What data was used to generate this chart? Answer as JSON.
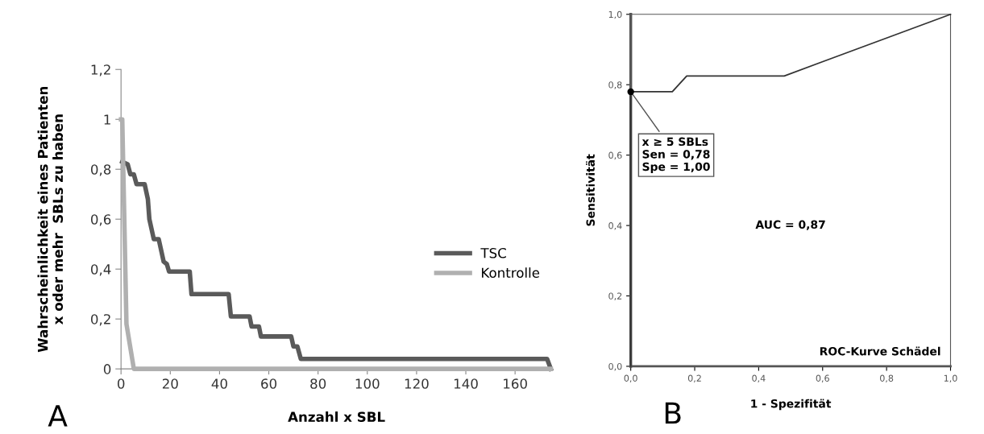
{
  "chart_data": [
    {
      "type": "line",
      "xlabel": "Anzahl x SBL",
      "ylabel": "Wahrscheinlichkeit eines Patienten\nx oder mehr  SBLs zu haben",
      "xlim": [
        0,
        175
      ],
      "xticks": [
        0,
        20,
        40,
        60,
        80,
        100,
        120,
        140,
        160
      ],
      "ylim": [
        0,
        1.2
      ],
      "yticks": [
        0,
        {
          "value": 0.2,
          "label": "0,2"
        },
        {
          "value": 0.4,
          "label": "0,4"
        },
        {
          "value": 0.6,
          "label": "0,6"
        },
        {
          "value": 0.8,
          "label": "0,8"
        },
        1,
        {
          "value": 1.2,
          "label": "1,2"
        }
      ],
      "grid": false,
      "legend": "right",
      "marker": "none",
      "line_style": "solid",
      "series": [
        {
          "name": "TSC",
          "color": "#5a5a5a",
          "x": [
            0.5,
            2.7,
            3.8,
            5.2,
            6.3,
            9.6,
            10.9,
            11.5,
            13.3,
            15.3,
            17.3,
            18.6,
            19.5,
            27.9,
            28.6,
            43.7,
            44.6,
            52.2,
            53.0,
            56.0,
            56.8,
            69.1,
            70.0,
            71.6,
            73.0,
            173,
            174.5
          ],
          "values": [
            0.83,
            0.82,
            0.78,
            0.78,
            0.74,
            0.74,
            0.68,
            0.6,
            0.52,
            0.52,
            0.43,
            0.42,
            0.39,
            0.39,
            0.3,
            0.3,
            0.21,
            0.21,
            0.17,
            0.17,
            0.13,
            0.13,
            0.09,
            0.09,
            0.04,
            0.04,
            0
          ]
        },
        {
          "name": "Kontrolle",
          "color": "#b0b0b0",
          "x": [
            0,
            0.5,
            2.2,
            5.2,
            174.5
          ],
          "values": [
            1,
            1,
            0.18,
            0,
            0
          ]
        }
      ],
      "annotations": [
        "A"
      ]
    },
    {
      "type": "line",
      "xlabel": "1 - Spezifität",
      "ylabel": "Sensitivität",
      "xlim": [
        0,
        1
      ],
      "xticks": [
        {
          "value": 0,
          "label": "0,0"
        },
        {
          "value": 0.2,
          "label": "0,2"
        },
        {
          "value": 0.4,
          "label": "0,4"
        },
        {
          "value": 0.6,
          "label": "0,6"
        },
        {
          "value": 0.8,
          "label": "0,8"
        },
        {
          "value": 1,
          "label": "1,0"
        }
      ],
      "ylim": [
        0,
        1
      ],
      "yticks": [
        {
          "value": 0,
          "label": "0,0"
        },
        {
          "value": 0.2,
          "label": "0,2"
        },
        {
          "value": 0.4,
          "label": "0,4"
        },
        {
          "value": 0.6,
          "label": "0,6"
        },
        {
          "value": 0.8,
          "label": "0,8"
        },
        {
          "value": 1,
          "label": "1,0"
        }
      ],
      "grid": false,
      "marker": "none",
      "line_style": "solid",
      "series": [
        {
          "color": "#333333",
          "x": [
            0,
            0,
            0.13,
            0.175,
            0.48,
            1
          ],
          "values": [
            0,
            0.78,
            0.78,
            0.825,
            0.825,
            1
          ]
        }
      ],
      "annotations": [
        "AUC = 0,87",
        "ROC-Kurve Schädel",
        "B",
        {
          "text": "x ≥ 5 SBLs\nSen = 0,78\nSpe = 1,00",
          "x": 0,
          "y": 0.78
        }
      ]
    }
  ]
}
